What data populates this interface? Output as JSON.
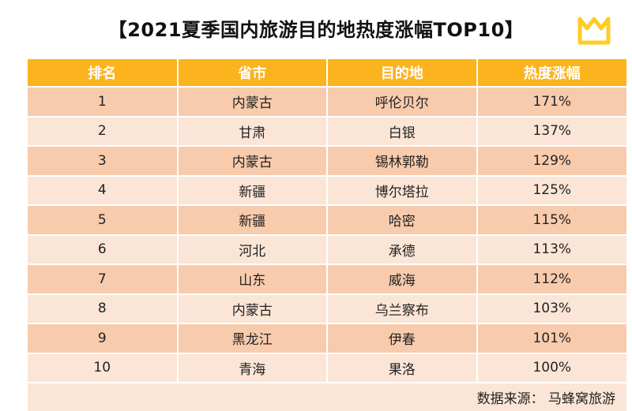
{
  "title": "【2021夏季国内旅游目的地热度涨幅TOP10】",
  "logo": {
    "icon": "mafengwo-m-logo-icon",
    "color": "#ffcc22"
  },
  "colors": {
    "header": "#fbb31e",
    "row_odd": "#f8cbad",
    "row_even": "#fbe5d6"
  },
  "table": {
    "headers": [
      "排名",
      "省市",
      "目的地",
      "热度涨幅"
    ],
    "rows": [
      [
        "1",
        "内蒙古",
        "呼伦贝尔",
        "171%"
      ],
      [
        "2",
        "甘肃",
        "白银",
        "137%"
      ],
      [
        "3",
        "内蒙古",
        "锡林郭勒",
        "129%"
      ],
      [
        "4",
        "新疆",
        "博尔塔拉",
        "125%"
      ],
      [
        "5",
        "新疆",
        "哈密",
        "115%"
      ],
      [
        "6",
        "河北",
        "承德",
        "113%"
      ],
      [
        "7",
        "山东",
        "威海",
        "112%"
      ],
      [
        "8",
        "内蒙古",
        "乌兰察布",
        "103%"
      ],
      [
        "9",
        "黑龙江",
        "伊春",
        "101%"
      ],
      [
        "10",
        "青海",
        "果洛",
        "100%"
      ]
    ],
    "source": "数据来源： 马蜂窝旅游"
  }
}
